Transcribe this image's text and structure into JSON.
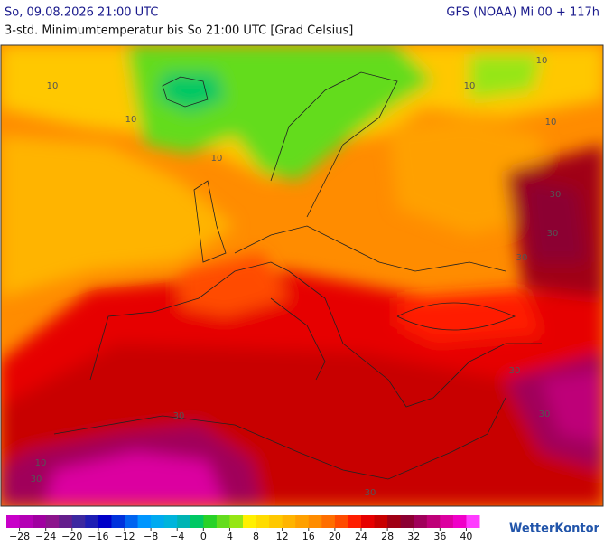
{
  "header": {
    "title": "So, 09.08.2026 21:00 UTC",
    "model": "GFS (NOAA) Mi 00 + 117h",
    "subtitle": "3-std. Minimumtemperatur bis So 21:00 UTC [Grad Celsius]"
  },
  "map": {
    "contour_labels": [
      "10",
      "10",
      "10",
      "10",
      "10",
      "10",
      "10",
      "30",
      "30",
      "30",
      "30",
      "30",
      "30",
      "30",
      "30"
    ]
  },
  "legend": {
    "range": [
      -30,
      42
    ],
    "step": 2,
    "colors": [
      "#c800c8",
      "#b400b4",
      "#a000a0",
      "#8c148c",
      "#641e8c",
      "#3c28a0",
      "#1e1eb4",
      "#0000c8",
      "#0032dc",
      "#0064f0",
      "#0096ff",
      "#00aaf0",
      "#00b4dc",
      "#00b4b4",
      "#00c864",
      "#28d228",
      "#64dc1e",
      "#96e614",
      "#fff000",
      "#ffdc00",
      "#ffc800",
      "#ffb400",
      "#ffa000",
      "#ff8c00",
      "#ff6e00",
      "#ff4b00",
      "#ff1e00",
      "#e60000",
      "#c80000",
      "#a00014",
      "#8c0032",
      "#a0005a",
      "#be0078",
      "#dc00a0",
      "#f000c8",
      "#ff3cff"
    ],
    "ticks": [
      {
        "value": -28,
        "label": "−28"
      },
      {
        "value": -24,
        "label": "−24"
      },
      {
        "value": -20,
        "label": "−20"
      },
      {
        "value": -16,
        "label": "−16"
      },
      {
        "value": -12,
        "label": "−12"
      },
      {
        "value": -8,
        "label": "−8"
      },
      {
        "value": -4,
        "label": "−4"
      },
      0,
      4,
      8,
      12,
      16,
      20,
      24,
      28,
      32,
      36,
      40
    ]
  },
  "logo": "WetterKontor"
}
